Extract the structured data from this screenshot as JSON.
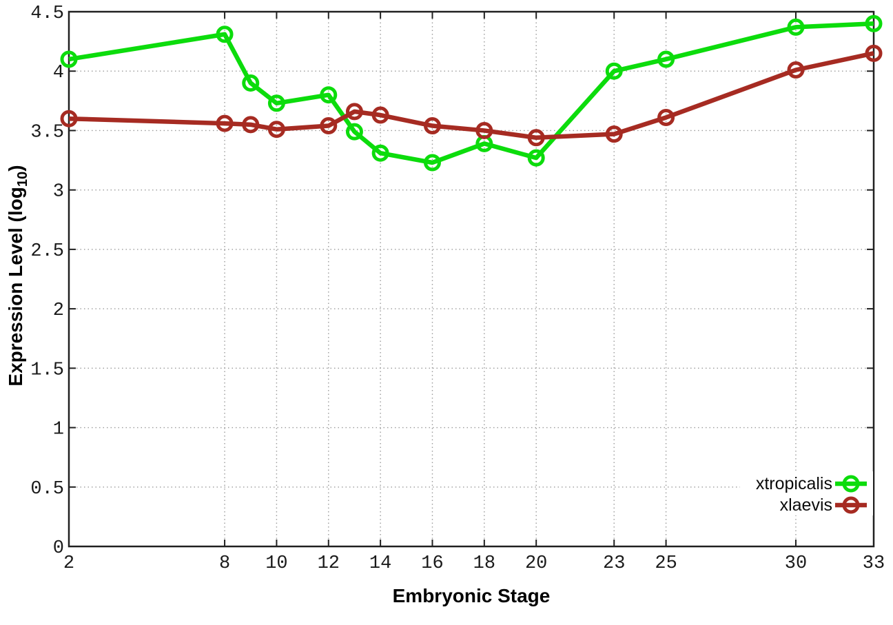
{
  "labels": {
    "xlabel": "Embryonic Stage",
    "ylabel_main": "Expression Level (log",
    "ylabel_sub": "10",
    "ylabel_close": ")"
  },
  "colors": {
    "background": "#ffffff",
    "axis": "#202020",
    "grid": "#9a9a9a",
    "tick_label": "#1a1a1a",
    "xtropicalis_green": "#0cdc0c",
    "xlaevis_red": "#a62b22"
  },
  "chart_data": {
    "type": "line",
    "title": "",
    "xlabel": "Embryonic Stage",
    "ylabel": "Expression Level (log10)",
    "xlim": [
      2,
      33
    ],
    "ylim": [
      0,
      4.5
    ],
    "x_ticks": [
      2,
      8,
      10,
      12,
      14,
      16,
      18,
      20,
      23,
      25,
      30,
      33
    ],
    "y_ticks": [
      0,
      0.5,
      1,
      1.5,
      2,
      2.5,
      3,
      3.5,
      4,
      4.5
    ],
    "grid": true,
    "grid_style": "dotted",
    "marker": "open-circle",
    "legend_position": "inside-right-bottom",
    "x": [
      2,
      8,
      9,
      10,
      12,
      13,
      14,
      16,
      18,
      20,
      23,
      25,
      30,
      33
    ],
    "series": [
      {
        "name": "xtropicalis",
        "color": "#0cdc0c",
        "values": [
          4.1,
          4.31,
          3.9,
          3.73,
          3.8,
          3.49,
          3.31,
          3.23,
          3.39,
          3.27,
          4.0,
          4.1,
          4.37,
          4.4
        ]
      },
      {
        "name": "xlaevis",
        "color": "#a62b22",
        "values": [
          3.6,
          3.56,
          3.55,
          3.51,
          3.54,
          3.66,
          3.63,
          3.54,
          3.5,
          3.44,
          3.47,
          3.61,
          4.01,
          4.15
        ]
      }
    ]
  }
}
